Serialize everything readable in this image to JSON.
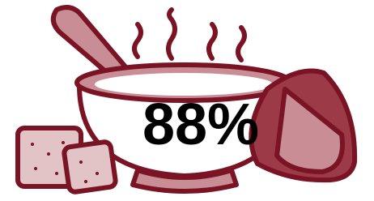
{
  "figure": {
    "label": "88%"
  }
}
